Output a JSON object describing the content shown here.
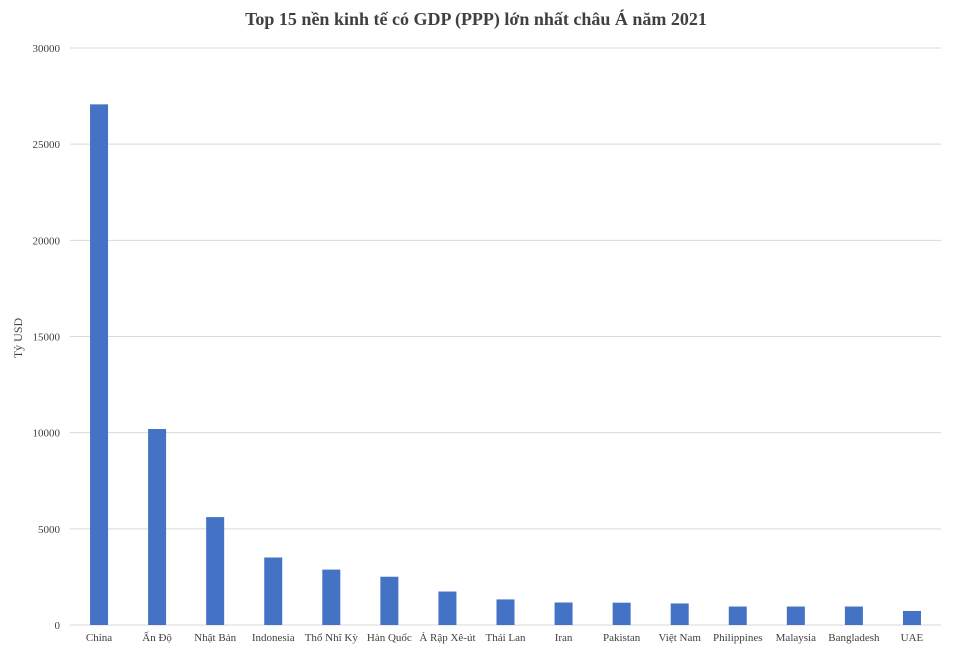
{
  "chart_data": {
    "type": "bar",
    "title": "Top 15 nền kinh tế có GDP (PPP) lớn nhất châu Á năm 2021",
    "xlabel": "",
    "ylabel": "Tỷ USD",
    "ylim": [
      0,
      30000
    ],
    "yticks": [
      0,
      5000,
      10000,
      15000,
      20000,
      25000,
      30000
    ],
    "grid": true,
    "legend": "none",
    "bar_color": "#4472c4",
    "categories": [
      "China",
      "Ấn Độ",
      "Nhật Bản",
      "Indonesia",
      "Thổ Nhĩ Kỳ",
      "Hàn Quốc",
      "Ả Rập Xê-út",
      "Thái Lan",
      "Iran",
      "Pakistan",
      "Việt Nam",
      "Philippines",
      "Malaysia",
      "Bangladesh",
      "UAE"
    ],
    "values": [
      27070,
      10190,
      5610,
      3510,
      2880,
      2510,
      1740,
      1330,
      1170,
      1160,
      1120,
      960,
      960,
      960,
      730
    ]
  }
}
